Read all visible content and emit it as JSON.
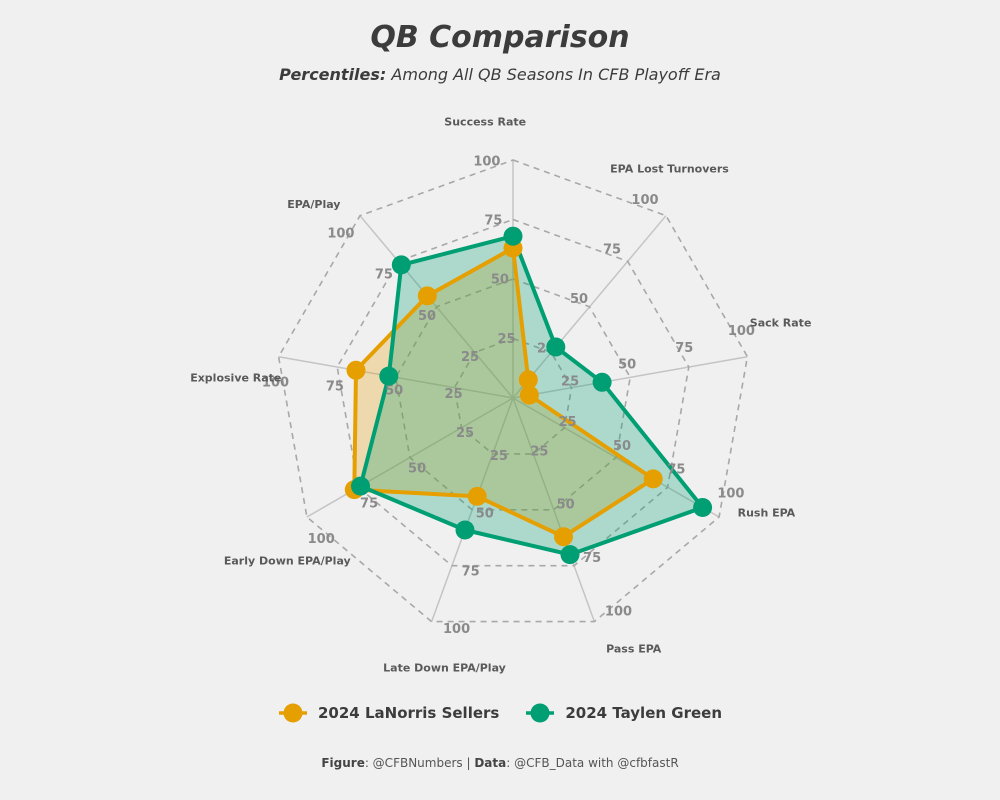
{
  "chart_data": {
    "type": "radar",
    "title": "QB Comparison",
    "subtitle_prefix": "Percentiles:",
    "subtitle_rest": "Among All QB Seasons In CFB Playoff Era",
    "axes": [
      "Success Rate",
      "EPA Lost Turnovers",
      "Sack Rate",
      "Rush EPA",
      "Pass EPA",
      "Late Down EPA/Play",
      "Early Down EPA/Play",
      "Explosive Rate",
      "EPA/Play"
    ],
    "rlim": [
      0,
      100
    ],
    "ticks": [
      25,
      50,
      75,
      100
    ],
    "series": [
      {
        "name": "2024 LaNorris Sellers",
        "color": "#E69F00",
        "values": [
          63,
          10,
          7,
          68,
          62,
          44,
          77,
          67,
          56
        ]
      },
      {
        "name": "2024 Taylen Green",
        "color": "#009E73",
        "values": [
          68,
          28,
          38,
          92,
          70,
          59,
          74,
          53,
          73
        ]
      }
    ]
  },
  "caption": {
    "figure_label": "Figure",
    "figure_text": ": @CFBNumbers | ",
    "data_label": "Data",
    "data_text": ": @CFB_Data with @cfbfastR"
  }
}
